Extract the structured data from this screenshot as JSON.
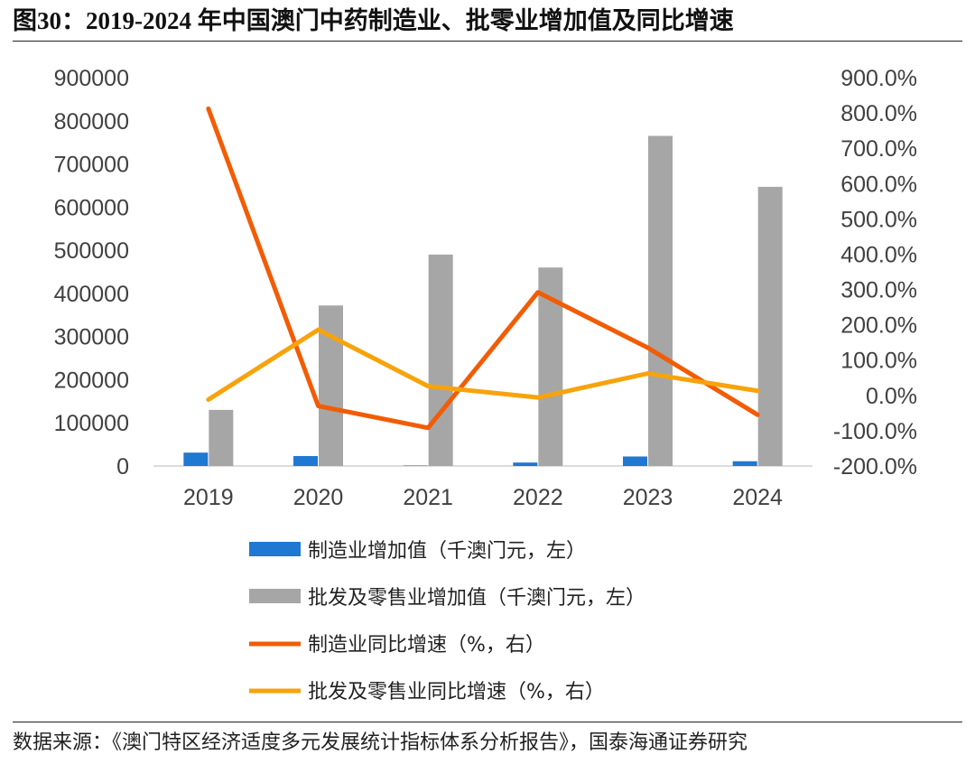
{
  "header": {
    "title": "图30：2019-2024 年中国澳门中药制造业、批零业增加值及同比增速"
  },
  "footer": {
    "source": "数据来源：《澳门特区经济适度多元发展统计指标体系分析报告》，国泰海通证券研究"
  },
  "chart_data": {
    "type": "bar",
    "categories": [
      "2019",
      "2020",
      "2021",
      "2022",
      "2023",
      "2024"
    ],
    "y_left": {
      "ylim": [
        0,
        900000
      ],
      "ticks": [
        0,
        100000,
        200000,
        300000,
        400000,
        500000,
        600000,
        700000,
        800000,
        900000
      ],
      "tick_labels": [
        "0",
        "100000",
        "200000",
        "300000",
        "400000",
        "500000",
        "600000",
        "700000",
        "800000",
        "900000"
      ]
    },
    "y_right": {
      "ylim": [
        -200,
        900
      ],
      "ticks": [
        -200,
        -100,
        0,
        100,
        200,
        300,
        400,
        500,
        600,
        700,
        800,
        900
      ],
      "tick_labels": [
        "-200.0%",
        "-100.0%",
        "0.0%",
        "100.0%",
        "200.0%",
        "300.0%",
        "400.0%",
        "500.0%",
        "600.0%",
        "700.0%",
        "800.0%",
        "900.0%"
      ]
    },
    "grid": false,
    "legend_position": "bottom",
    "series": [
      {
        "name": "制造业增加值（千澳门元，左）",
        "type": "bar",
        "axis": "left",
        "color": "#1f78d1",
        "values": [
          31000,
          23000,
          1000,
          8000,
          22000,
          11000
        ]
      },
      {
        "name": "批发及零售业增加值（千澳门元，左）",
        "type": "bar",
        "axis": "left",
        "color": "#a6a6a6",
        "values": [
          130000,
          372000,
          490000,
          460000,
          765000,
          647000
        ]
      },
      {
        "name": "制造业同比增速（%，右）",
        "type": "line",
        "axis": "right",
        "color": "#f25c05",
        "values": [
          812,
          -30,
          -92,
          292,
          135,
          -55
        ]
      },
      {
        "name": "批发及零售业同比增速（%，右）",
        "type": "line",
        "axis": "right",
        "color": "#f7a30c",
        "values": [
          -12,
          186,
          26,
          -6,
          62,
          13
        ]
      }
    ]
  }
}
